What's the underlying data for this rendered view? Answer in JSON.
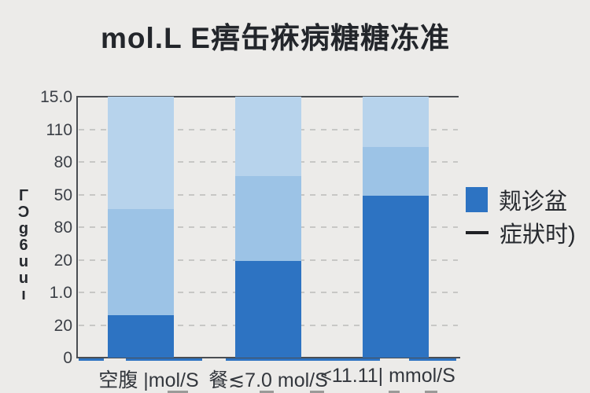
{
  "title": "mol.L E痦缶㾋病糖糖冻准",
  "y_axis_title": "ΓƆg6uuı",
  "colors": {
    "background": "#ecebe9",
    "dark_blue": "#2d73c2",
    "medium_blue": "#9cc3e6",
    "light_blue": "#b7d3ec",
    "axis": "#4a4d52",
    "grid": "#c7c7c5",
    "title_text": "#23262b",
    "tick_text": "#3b3f46"
  },
  "chart_data": {
    "type": "bar",
    "stacked": true,
    "title": "mol.L E痦缶㾋病糖糖冻准",
    "categories": [
      "空腹 |mol/S",
      "餐≲7.0 mol/S",
      "<11.11| mmol/S"
    ],
    "y_tick_labels_top_to_bottom": [
      "15.0",
      "110",
      "80",
      "50",
      "80",
      "20",
      "1.0",
      "20",
      "0"
    ],
    "ylabel": "ΓƆg6uuı",
    "ylim_units": [
      0,
      8
    ],
    "grid": "dashed horizontal gridlines at each tick",
    "legend_position": "right",
    "series": [
      {
        "name": "dark-blue-bottom",
        "color": "#2d73c2",
        "values_units": [
          1.3,
          2.96,
          4.96
        ]
      },
      {
        "name": "medium-blue-middle",
        "color": "#9cc3e6",
        "values_units": [
          3.25,
          2.6,
          1.49
        ]
      },
      {
        "name": "light-blue-top",
        "color": "#b7d3ec",
        "values_units": [
          3.45,
          2.43,
          1.54
        ]
      }
    ]
  },
  "legend": {
    "items": [
      {
        "swatch": "square",
        "color": "#2d73c2",
        "label": "觌诊盆"
      },
      {
        "swatch": "dash",
        "color": "#1f2125",
        "label": "症狀时)"
      }
    ]
  }
}
